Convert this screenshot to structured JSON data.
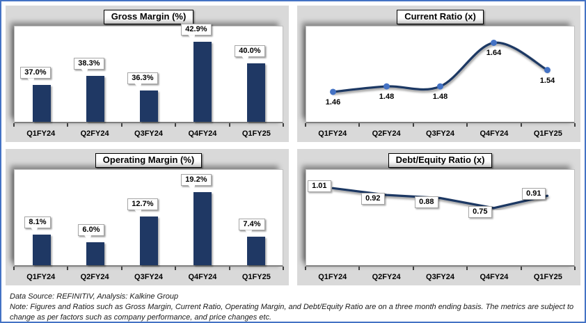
{
  "colors": {
    "frame_border": "#4472C4",
    "panel_bg": "#D9D9D9",
    "plot_bg": "#FFFFFF",
    "bar": "#1F3864",
    "line": "#1F3864",
    "marker": "#4472C4",
    "axis": "#404040"
  },
  "chart_data": [
    {
      "type": "bar",
      "title": "Gross Margin (%)",
      "categories": [
        "Q1FY24",
        "Q2FY24",
        "Q3FY24",
        "Q4FY24",
        "Q1FY25"
      ],
      "values": [
        37.0,
        38.3,
        36.3,
        42.9,
        40.0
      ],
      "labels": [
        "37.0%",
        "38.3%",
        "36.3%",
        "42.9%",
        "40.0%"
      ],
      "ylim": [
        32,
        45
      ],
      "label_style": "callout",
      "grid": false,
      "legend": "none"
    },
    {
      "type": "line",
      "smooth": true,
      "markers": true,
      "title": "Current Ratio (x)",
      "categories": [
        "Q1FY24",
        "Q2FY24",
        "Q3FY24",
        "Q4FY24",
        "Q1FY25"
      ],
      "values": [
        1.46,
        1.48,
        1.48,
        1.64,
        1.54
      ],
      "labels": [
        "1.46",
        "1.48",
        "1.48",
        "1.64",
        "1.54"
      ],
      "ylim": [
        1.35,
        1.7
      ],
      "label_style": "below",
      "grid": false,
      "legend": "none"
    },
    {
      "type": "bar",
      "title": "Operating Margin (%)",
      "categories": [
        "Q1FY24",
        "Q2FY24",
        "Q3FY24",
        "Q4FY24",
        "Q1FY25"
      ],
      "values": [
        8.1,
        6.0,
        12.7,
        19.2,
        7.4
      ],
      "labels": [
        "8.1%",
        "6.0%",
        "12.7%",
        "19.2%",
        "7.4%"
      ],
      "ylim": [
        0,
        25
      ],
      "label_style": "callout",
      "grid": false,
      "legend": "none"
    },
    {
      "type": "line",
      "smooth": false,
      "markers": false,
      "title": "Debt/Equity Ratio (x)",
      "categories": [
        "Q1FY24",
        "Q2FY24",
        "Q3FY24",
        "Q4FY24",
        "Q1FY25"
      ],
      "values": [
        1.01,
        0.92,
        0.88,
        0.75,
        0.91
      ],
      "labels": [
        "1.01",
        "0.92",
        "0.88",
        "0.75",
        "0.91"
      ],
      "ylim": [
        0,
        1.25
      ],
      "label_style": "box-left",
      "grid": false,
      "legend": "none"
    }
  ],
  "footer": {
    "source": "Data Source: REFINITIV, Analysis: Kalkine Group",
    "note": "Note: Figures and Ratios such as Gross Margin, Current Ratio, Operating Margin, and Debt/Equity Ratio are on a three month ending basis. The metrics are subject to change as per factors such as company performance, and price changes etc."
  }
}
